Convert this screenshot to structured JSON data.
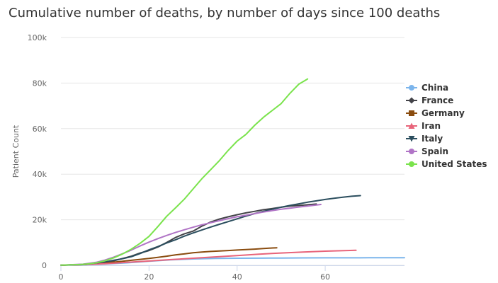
{
  "chart_data": {
    "type": "line",
    "title": "Cumulative number of deaths, by number of days since 100 deaths",
    "xlabel": "",
    "ylabel": "Patient Count",
    "xlim": [
      0,
      78
    ],
    "ylim": [
      0,
      100000
    ],
    "xticks": [
      {
        "value": 0,
        "label": "0"
      },
      {
        "value": 20,
        "label": "20"
      },
      {
        "value": 40,
        "label": "40"
      },
      {
        "value": 60,
        "label": "60"
      }
    ],
    "yticks": [
      {
        "value": 0,
        "label": "0"
      },
      {
        "value": 20000,
        "label": "20k"
      },
      {
        "value": 40000,
        "label": "40k"
      },
      {
        "value": 60000,
        "label": "60k"
      },
      {
        "value": 80000,
        "label": "80k"
      },
      {
        "value": 100000,
        "label": "100k"
      }
    ],
    "grid": true,
    "legend_position": "right",
    "series": [
      {
        "name": "China",
        "color": "#7cb5ec",
        "marker": "circle",
        "points": [
          [
            0,
            100
          ],
          [
            5,
            250
          ],
          [
            10,
            600
          ],
          [
            15,
            1100
          ],
          [
            20,
            1800
          ],
          [
            25,
            2400
          ],
          [
            30,
            2800
          ],
          [
            35,
            3000
          ],
          [
            40,
            3100
          ],
          [
            45,
            3150
          ],
          [
            50,
            3200
          ],
          [
            55,
            3250
          ],
          [
            60,
            3280
          ],
          [
            65,
            3300
          ],
          [
            70,
            3320
          ],
          [
            78,
            3340
          ]
        ]
      },
      {
        "name": "France",
        "color": "#434348",
        "marker": "diamond",
        "points": [
          [
            0,
            100
          ],
          [
            5,
            300
          ],
          [
            8,
            700
          ],
          [
            10,
            1300
          ],
          [
            12,
            2000
          ],
          [
            14,
            3000
          ],
          [
            16,
            4000
          ],
          [
            18,
            5400
          ],
          [
            20,
            6500
          ],
          [
            22,
            8000
          ],
          [
            24,
            10000
          ],
          [
            26,
            12200
          ],
          [
            28,
            13800
          ],
          [
            30,
            15000
          ],
          [
            32,
            17200
          ],
          [
            34,
            19000
          ],
          [
            36,
            20300
          ],
          [
            38,
            21300
          ],
          [
            40,
            22200
          ],
          [
            42,
            23000
          ],
          [
            44,
            23700
          ],
          [
            46,
            24400
          ],
          [
            48,
            24900
          ],
          [
            50,
            25500
          ],
          [
            52,
            26000
          ],
          [
            55,
            26400
          ],
          [
            58,
            26900
          ]
        ]
      },
      {
        "name": "Germany",
        "color": "#8a4c0f",
        "marker": "square",
        "points": [
          [
            0,
            100
          ],
          [
            5,
            300
          ],
          [
            8,
            700
          ],
          [
            10,
            1000
          ],
          [
            12,
            1400
          ],
          [
            14,
            1800
          ],
          [
            16,
            2200
          ],
          [
            18,
            2600
          ],
          [
            20,
            3000
          ],
          [
            22,
            3500
          ],
          [
            24,
            4000
          ],
          [
            26,
            4600
          ],
          [
            28,
            5000
          ],
          [
            30,
            5500
          ],
          [
            32,
            5800
          ],
          [
            34,
            6100
          ],
          [
            36,
            6300
          ],
          [
            38,
            6500
          ],
          [
            40,
            6700
          ],
          [
            42,
            6900
          ],
          [
            44,
            7100
          ],
          [
            46,
            7400
          ],
          [
            48,
            7600
          ],
          [
            49,
            7700
          ]
        ]
      },
      {
        "name": "Iran",
        "color": "#e8647a",
        "marker": "triangle",
        "points": [
          [
            0,
            100
          ],
          [
            5,
            300
          ],
          [
            10,
            700
          ],
          [
            15,
            1300
          ],
          [
            20,
            1900
          ],
          [
            25,
            2500
          ],
          [
            30,
            3100
          ],
          [
            35,
            3700
          ],
          [
            40,
            4300
          ],
          [
            45,
            4900
          ],
          [
            50,
            5400
          ],
          [
            55,
            5800
          ],
          [
            60,
            6200
          ],
          [
            65,
            6500
          ],
          [
            67,
            6600
          ]
        ]
      },
      {
        "name": "Italy",
        "color": "#2b4e5e",
        "marker": "triangle-down",
        "points": [
          [
            0,
            100
          ],
          [
            5,
            400
          ],
          [
            10,
            1500
          ],
          [
            12,
            2200
          ],
          [
            14,
            2900
          ],
          [
            16,
            3800
          ],
          [
            18,
            5200
          ],
          [
            20,
            6800
          ],
          [
            22,
            8200
          ],
          [
            24,
            9800
          ],
          [
            26,
            11200
          ],
          [
            28,
            12800
          ],
          [
            30,
            14200
          ],
          [
            32,
            15500
          ],
          [
            34,
            16800
          ],
          [
            36,
            18000
          ],
          [
            38,
            19200
          ],
          [
            40,
            20400
          ],
          [
            42,
            21600
          ],
          [
            44,
            22700
          ],
          [
            46,
            23700
          ],
          [
            48,
            24600
          ],
          [
            50,
            25500
          ],
          [
            52,
            26300
          ],
          [
            54,
            27000
          ],
          [
            56,
            27700
          ],
          [
            58,
            28300
          ],
          [
            60,
            28900
          ],
          [
            62,
            29400
          ],
          [
            64,
            29900
          ],
          [
            66,
            30300
          ],
          [
            68,
            30600
          ]
        ]
      },
      {
        "name": "Spain",
        "color": "#b074c6",
        "marker": "circle",
        "points": [
          [
            0,
            100
          ],
          [
            5,
            500
          ],
          [
            8,
            1300
          ],
          [
            10,
            2300
          ],
          [
            12,
            3600
          ],
          [
            14,
            5100
          ],
          [
            16,
            6700
          ],
          [
            18,
            8500
          ],
          [
            20,
            10200
          ],
          [
            22,
            11700
          ],
          [
            24,
            13100
          ],
          [
            26,
            14400
          ],
          [
            28,
            15600
          ],
          [
            30,
            16700
          ],
          [
            32,
            17800
          ],
          [
            34,
            18700
          ],
          [
            36,
            19600
          ],
          [
            38,
            20500
          ],
          [
            40,
            21300
          ],
          [
            42,
            22000
          ],
          [
            44,
            22700
          ],
          [
            46,
            23400
          ],
          [
            48,
            24000
          ],
          [
            50,
            24600
          ],
          [
            52,
            25100
          ],
          [
            54,
            25600
          ],
          [
            56,
            26000
          ],
          [
            59,
            26700
          ]
        ]
      },
      {
        "name": "United States",
        "color": "#7ae34c",
        "marker": "circle",
        "points": [
          [
            0,
            100
          ],
          [
            4,
            300
          ],
          [
            6,
            600
          ],
          [
            8,
            1100
          ],
          [
            10,
            2000
          ],
          [
            12,
            3300
          ],
          [
            14,
            5000
          ],
          [
            16,
            7100
          ],
          [
            18,
            9700
          ],
          [
            20,
            12700
          ],
          [
            22,
            17000
          ],
          [
            24,
            21500
          ],
          [
            26,
            25200
          ],
          [
            28,
            29000
          ],
          [
            30,
            33500
          ],
          [
            32,
            38000
          ],
          [
            34,
            42000
          ],
          [
            36,
            46000
          ],
          [
            38,
            50500
          ],
          [
            40,
            54500
          ],
          [
            42,
            57500
          ],
          [
            44,
            61500
          ],
          [
            46,
            65000
          ],
          [
            48,
            68000
          ],
          [
            50,
            71000
          ],
          [
            52,
            75500
          ],
          [
            54,
            79500
          ],
          [
            56,
            81800
          ]
        ]
      }
    ]
  }
}
